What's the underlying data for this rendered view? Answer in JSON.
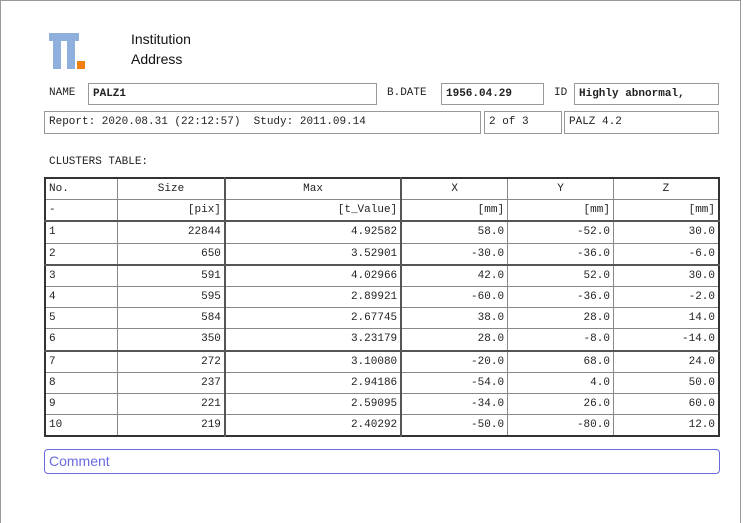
{
  "header": {
    "institution": "Institution",
    "address": "Address"
  },
  "patient": {
    "name_label": "NAME",
    "name": "PALZ1",
    "bdate_label": "B.DATE",
    "bdate": "1956.04.29",
    "id_label": "ID",
    "id": "Highly abnormal,"
  },
  "report": {
    "info": "Report: 2020.08.31 (22:12:57)  Study: 2011.09.14",
    "page": "2 of 3",
    "version": "PALZ 4.2"
  },
  "table": {
    "title": "CLUSTERS TABLE:",
    "header": [
      "No.",
      "Size",
      "Max",
      "X",
      "Y",
      "Z"
    ],
    "units": [
      "-",
      "[pix]",
      "[t_Value]",
      "[mm]",
      "[mm]",
      "[mm]"
    ],
    "rows": [
      [
        "1",
        "22844",
        "4.92582",
        "58.0",
        "-52.0",
        "30.0"
      ],
      [
        "2",
        "650",
        "3.52901",
        "-30.0",
        "-36.0",
        "-6.0"
      ],
      [
        "3",
        "591",
        "4.02966",
        "42.0",
        "52.0",
        "30.0"
      ],
      [
        "4",
        "595",
        "2.89921",
        "-60.0",
        "-36.0",
        "-2.0"
      ],
      [
        "5",
        "584",
        "2.67745",
        "38.0",
        "28.0",
        "14.0"
      ],
      [
        "6",
        "350",
        "3.23179",
        "28.0",
        "-8.0",
        "-14.0"
      ],
      [
        "7",
        "272",
        "3.10080",
        "-20.0",
        "68.0",
        "24.0"
      ],
      [
        "8",
        "237",
        "2.94186",
        "-54.0",
        "4.0",
        "50.0"
      ],
      [
        "9",
        "221",
        "2.59095",
        "-34.0",
        "26.0",
        "60.0"
      ],
      [
        "10",
        "219",
        "2.40292",
        "-50.0",
        "-80.0",
        "12.0"
      ]
    ]
  },
  "comment": "Comment"
}
